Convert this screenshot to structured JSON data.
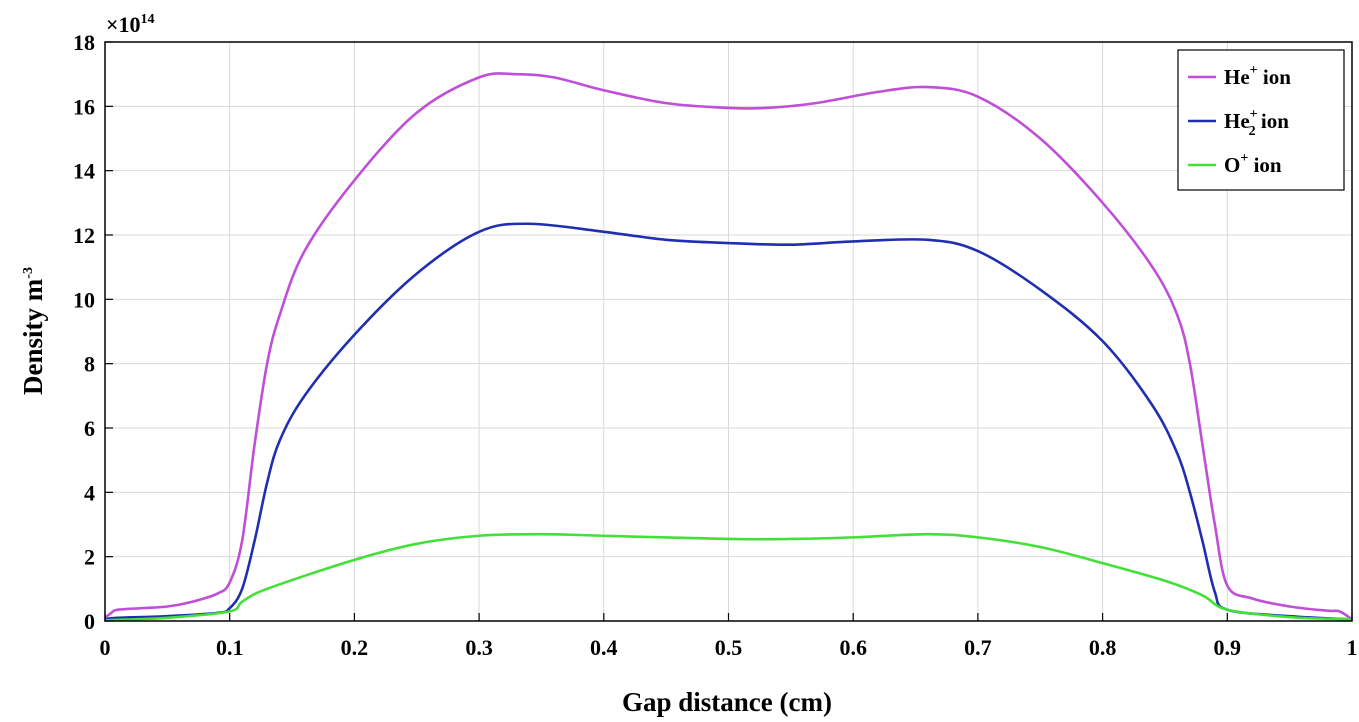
{
  "chart_data": {
    "type": "line",
    "xlabel": "Gap distance (cm)",
    "ylabel": {
      "base": "Density m",
      "sup": "-3"
    },
    "y_multiplier": {
      "base": "×10",
      "exp": "14"
    },
    "xlim": [
      0,
      1
    ],
    "ylim": [
      0,
      18
    ],
    "xticks": [
      0,
      0.1,
      0.2,
      0.3,
      0.4,
      0.5,
      0.6,
      0.7,
      0.8,
      0.9,
      1
    ],
    "xtick_labels": [
      "0",
      "0.1",
      "0.2",
      "0.3",
      "0.4",
      "0.5",
      "0.6",
      "0.7",
      "0.8",
      "0.9",
      "1"
    ],
    "yticks": [
      0,
      2,
      4,
      6,
      8,
      10,
      12,
      14,
      16,
      18
    ],
    "ytick_labels": [
      "0",
      "2",
      "4",
      "6",
      "8",
      "10",
      "12",
      "14",
      "16",
      "18"
    ],
    "grid": true,
    "legend_position": "top-right",
    "series": [
      {
        "name": "He+ ion",
        "label": {
          "base": "He",
          "sup": "+",
          "sub": "",
          "suffix": " ion"
        },
        "color": "#c04fd8",
        "points": [
          [
            0,
            0.1
          ],
          [
            0.005,
            0.25
          ],
          [
            0.01,
            0.35
          ],
          [
            0.03,
            0.4
          ],
          [
            0.05,
            0.45
          ],
          [
            0.07,
            0.6
          ],
          [
            0.09,
            0.85
          ],
          [
            0.1,
            1.2
          ],
          [
            0.11,
            2.5
          ],
          [
            0.12,
            5.5
          ],
          [
            0.13,
            8.0
          ],
          [
            0.14,
            9.5
          ],
          [
            0.16,
            11.5
          ],
          [
            0.2,
            13.7
          ],
          [
            0.25,
            15.8
          ],
          [
            0.3,
            16.9
          ],
          [
            0.33,
            17.0
          ],
          [
            0.36,
            16.9
          ],
          [
            0.4,
            16.5
          ],
          [
            0.45,
            16.1
          ],
          [
            0.5,
            15.95
          ],
          [
            0.53,
            15.95
          ],
          [
            0.57,
            16.1
          ],
          [
            0.62,
            16.45
          ],
          [
            0.66,
            16.6
          ],
          [
            0.7,
            16.3
          ],
          [
            0.75,
            15.0
          ],
          [
            0.8,
            13.0
          ],
          [
            0.84,
            11.0
          ],
          [
            0.86,
            9.5
          ],
          [
            0.87,
            8.0
          ],
          [
            0.88,
            5.5
          ],
          [
            0.89,
            3.0
          ],
          [
            0.9,
            1.1
          ],
          [
            0.92,
            0.7
          ],
          [
            0.95,
            0.45
          ],
          [
            0.98,
            0.32
          ],
          [
            0.99,
            0.3
          ],
          [
            1.0,
            0.05
          ]
        ]
      },
      {
        "name": "He2+ ion",
        "label": {
          "base": "He",
          "sup": "+",
          "sub": "2",
          "suffix": " ion"
        },
        "color": "#1f2fb0",
        "points": [
          [
            0,
            0.05
          ],
          [
            0.01,
            0.1
          ],
          [
            0.05,
            0.15
          ],
          [
            0.09,
            0.25
          ],
          [
            0.1,
            0.4
          ],
          [
            0.11,
            1.0
          ],
          [
            0.12,
            2.5
          ],
          [
            0.13,
            4.3
          ],
          [
            0.14,
            5.6
          ],
          [
            0.16,
            7.0
          ],
          [
            0.2,
            8.9
          ],
          [
            0.25,
            10.8
          ],
          [
            0.3,
            12.1
          ],
          [
            0.34,
            12.35
          ],
          [
            0.4,
            12.1
          ],
          [
            0.45,
            11.85
          ],
          [
            0.5,
            11.75
          ],
          [
            0.55,
            11.7
          ],
          [
            0.6,
            11.8
          ],
          [
            0.66,
            11.85
          ],
          [
            0.7,
            11.5
          ],
          [
            0.75,
            10.3
          ],
          [
            0.8,
            8.7
          ],
          [
            0.84,
            6.7
          ],
          [
            0.86,
            5.2
          ],
          [
            0.87,
            4.0
          ],
          [
            0.88,
            2.5
          ],
          [
            0.89,
            0.9
          ],
          [
            0.9,
            0.35
          ],
          [
            0.95,
            0.15
          ],
          [
            1.0,
            0.05
          ]
        ]
      },
      {
        "name": "O+ ion",
        "label": {
          "base": "O",
          "sup": "+",
          "sub": "",
          "suffix": " ion"
        },
        "color": "#44e03a",
        "points": [
          [
            0,
            0.02
          ],
          [
            0.05,
            0.1
          ],
          [
            0.1,
            0.3
          ],
          [
            0.11,
            0.6
          ],
          [
            0.13,
            1.0
          ],
          [
            0.2,
            1.9
          ],
          [
            0.25,
            2.4
          ],
          [
            0.3,
            2.65
          ],
          [
            0.35,
            2.7
          ],
          [
            0.4,
            2.65
          ],
          [
            0.5,
            2.55
          ],
          [
            0.55,
            2.55
          ],
          [
            0.6,
            2.6
          ],
          [
            0.66,
            2.7
          ],
          [
            0.7,
            2.6
          ],
          [
            0.75,
            2.3
          ],
          [
            0.8,
            1.8
          ],
          [
            0.85,
            1.25
          ],
          [
            0.88,
            0.8
          ],
          [
            0.9,
            0.35
          ],
          [
            0.95,
            0.12
          ],
          [
            1.0,
            0.05
          ]
        ]
      }
    ]
  }
}
